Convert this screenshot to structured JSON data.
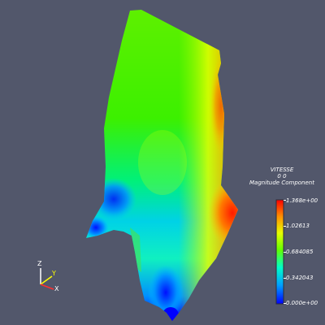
{
  "scene": {
    "background": "#52576b",
    "colormap": [
      "#0000ff",
      "#00a8ff",
      "#00ffc8",
      "#64ff00",
      "#e6ff00",
      "#ff9000",
      "#ff0000"
    ]
  },
  "scalar_bar": {
    "title": "VITESSE",
    "subtitle": "0 0",
    "component": "Magnitude Component",
    "ticks": [
      "1.368e+00",
      "1.02613",
      "0.684085",
      "0.342043",
      "0.000e+00"
    ]
  },
  "axes": {
    "z": "Z",
    "y": "Y",
    "x": "X",
    "z_color": "#ffffff",
    "y_color": "#ffff00",
    "x_color": "#ff3030"
  }
}
